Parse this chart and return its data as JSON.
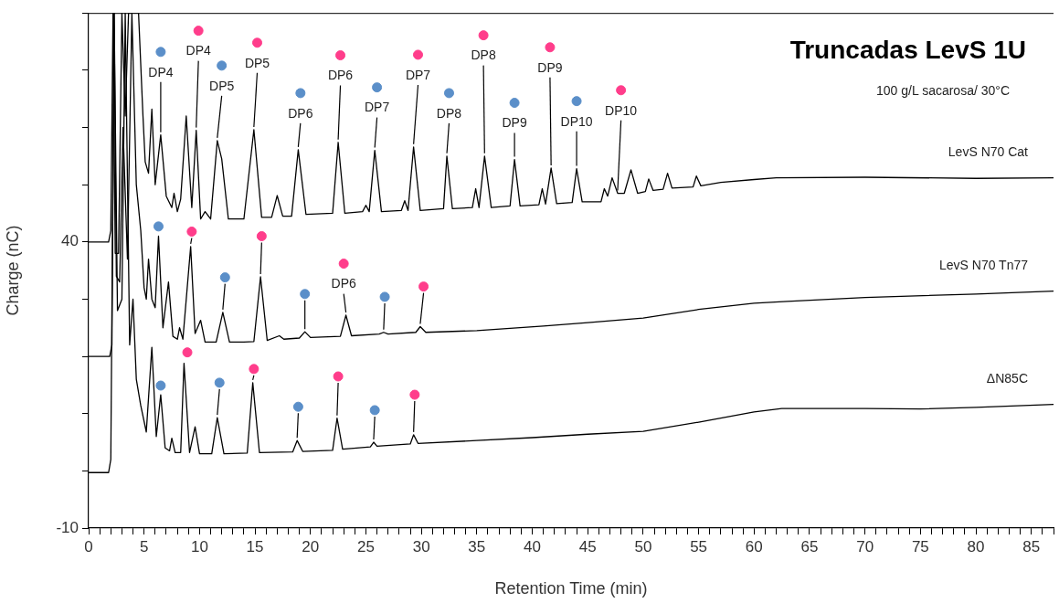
{
  "chart_data": {
    "type": "line",
    "title": "Truncadas LevS 1U",
    "subtitle": "100 g/L sacarosa/ 30°C",
    "xlabel": "Retention Time (min)",
    "ylabel": "Charge (nC)",
    "xlim": [
      0,
      87
    ],
    "ylim": [
      -10,
      80
    ],
    "grid": false,
    "legend": false,
    "marker": "none",
    "line_style": "solid",
    "xticks": [
      0,
      {
        "value": 1,
        "label": null
      },
      {
        "value": 2,
        "label": null
      },
      {
        "value": 3,
        "label": null
      },
      {
        "value": 4,
        "label": null
      },
      5,
      {
        "value": 6,
        "label": null
      },
      {
        "value": 7,
        "label": null
      },
      {
        "value": 8,
        "label": null
      },
      {
        "value": 9,
        "label": null
      },
      10,
      {
        "value": 11,
        "label": null
      },
      {
        "value": 12,
        "label": null
      },
      {
        "value": 13,
        "label": null
      },
      {
        "value": 14,
        "label": null
      },
      15,
      {
        "value": 16,
        "label": null
      },
      {
        "value": 17,
        "label": null
      },
      {
        "value": 18,
        "label": null
      },
      {
        "value": 19,
        "label": null
      },
      20,
      {
        "value": 21,
        "label": null
      },
      {
        "value": 22,
        "label": null
      },
      {
        "value": 23,
        "label": null
      },
      {
        "value": 24,
        "label": null
      },
      25,
      {
        "value": 26,
        "label": null
      },
      {
        "value": 27,
        "label": null
      },
      {
        "value": 28,
        "label": null
      },
      {
        "value": 29,
        "label": null
      },
      30,
      {
        "value": 31,
        "label": null
      },
      {
        "value": 32,
        "label": null
      },
      {
        "value": 33,
        "label": null
      },
      {
        "value": 34,
        "label": null
      },
      35,
      {
        "value": 36,
        "label": null
      },
      {
        "value": 37,
        "label": null
      },
      {
        "value": 38,
        "label": null
      },
      {
        "value": 39,
        "label": null
      },
      40,
      {
        "value": 41,
        "label": null
      },
      {
        "value": 42,
        "label": null
      },
      {
        "value": 43,
        "label": null
      },
      {
        "value": 44,
        "label": null
      },
      45,
      {
        "value": 46,
        "label": null
      },
      {
        "value": 47,
        "label": null
      },
      {
        "value": 48,
        "label": null
      },
      {
        "value": 49,
        "label": null
      },
      50,
      {
        "value": 51,
        "label": null
      },
      {
        "value": 52,
        "label": null
      },
      {
        "value": 53,
        "label": null
      },
      {
        "value": 54,
        "label": null
      },
      55,
      {
        "value": 56,
        "label": null
      },
      {
        "value": 57,
        "label": null
      },
      {
        "value": 58,
        "label": null
      },
      {
        "value": 59,
        "label": null
      },
      60,
      {
        "value": 61,
        "label": null
      },
      {
        "value": 62,
        "label": null
      },
      {
        "value": 63,
        "label": null
      },
      {
        "value": 64,
        "label": null
      },
      65,
      {
        "value": 66,
        "label": null
      },
      {
        "value": 67,
        "label": null
      },
      {
        "value": 68,
        "label": null
      },
      {
        "value": 69,
        "label": null
      },
      70,
      {
        "value": 71,
        "label": null
      },
      {
        "value": 72,
        "label": null
      },
      {
        "value": 73,
        "label": null
      },
      {
        "value": 74,
        "label": null
      },
      75,
      {
        "value": 76,
        "label": null
      },
      {
        "value": 77,
        "label": null
      },
      {
        "value": 78,
        "label": null
      },
      {
        "value": 79,
        "label": null
      },
      80,
      {
        "value": 81,
        "label": null
      },
      {
        "value": 82,
        "label": null
      },
      {
        "value": 83,
        "label": null
      },
      {
        "value": 84,
        "label": null
      },
      85,
      {
        "value": 86,
        "label": null
      },
      {
        "value": 87,
        "label": null
      }
    ],
    "yticks": [
      -10,
      {
        "value": 0,
        "label": null
      },
      {
        "value": 10,
        "label": null
      },
      {
        "value": 20,
        "label": null
      },
      {
        "value": 30,
        "label": null
      },
      40,
      {
        "value": 50,
        "label": null
      },
      {
        "value": 60,
        "label": null
      },
      {
        "value": 70,
        "label": null
      },
      {
        "value": 80,
        "label": null
      }
    ],
    "series": [
      {
        "name": "LevS N70 Cat",
        "color": "#000000",
        "x": [
          0,
          1.8,
          2.0,
          2.2,
          2.4,
          2.7,
          3.0,
          3.3,
          3.6,
          4.0,
          4.5,
          4.9,
          5.1,
          5.4,
          5.7,
          6.0,
          6.5,
          7.0,
          7.5,
          7.7,
          8.0,
          8.3,
          8.8,
          9.3,
          9.7,
          10.1,
          10.5,
          11.0,
          11.6,
          12.0,
          12.6,
          14.0,
          14.9,
          15.6,
          16.5,
          17.0,
          17.5,
          18.3,
          18.9,
          19.6,
          22.0,
          22.5,
          23.1,
          24.7,
          25.0,
          25.3,
          25.8,
          26.4,
          28.2,
          28.5,
          28.8,
          29.3,
          29.9,
          32.0,
          32.3,
          32.8,
          34.6,
          34.9,
          35.2,
          35.7,
          36.3,
          38.0,
          38.4,
          38.9,
          40.6,
          40.9,
          41.2,
          41.7,
          42.2,
          43.6,
          44.0,
          44.5,
          46.2,
          46.5,
          46.8,
          47.2,
          47.7,
          48.3,
          48.9,
          49.5,
          50.2,
          50.5,
          50.9,
          51.8,
          52.2,
          52.6,
          54.5,
          54.8,
          55.2,
          57,
          60,
          62,
          70,
          80,
          87
        ],
        "values": [
          40,
          40,
          42,
          80,
          38,
          38,
          80,
          62,
          80,
          80,
          80,
          62,
          54,
          52,
          63.2,
          50,
          58.7,
          48,
          46,
          48.5,
          45.3,
          47.5,
          62,
          46,
          59.5,
          44,
          45.3,
          44,
          57.7,
          54.5,
          44,
          44,
          59.6,
          44.3,
          44.3,
          48.1,
          44.5,
          44.5,
          56.1,
          44.8,
          45,
          57.4,
          45,
          45.3,
          46.4,
          45.3,
          56,
          45.3,
          45.5,
          47.2,
          45.5,
          56.6,
          45.5,
          45.8,
          55,
          45.8,
          46,
          49.3,
          46,
          55,
          46,
          46.3,
          54.4,
          46.3,
          46.5,
          49.3,
          46.6,
          52.9,
          46.7,
          46.9,
          52.8,
          47,
          47,
          49.3,
          48,
          51.2,
          48.5,
          48.5,
          52.6,
          48.5,
          48.8,
          51,
          49,
          49.2,
          52,
          49.4,
          49.6,
          51.5,
          49.8,
          50.4,
          50.9,
          51.2,
          51.3,
          51.1,
          51.2
        ]
      },
      {
        "name": "LevS N70 Tn77",
        "color": "#000000",
        "x": [
          0,
          1.9,
          2.1,
          2.3,
          2.5,
          2.8,
          3.1,
          3.5,
          3.9,
          4.3,
          4.7,
          5.0,
          5.2,
          5.4,
          5.7,
          6.0,
          6.3,
          6.7,
          7.2,
          7.6,
          8.0,
          8.2,
          8.5,
          9.2,
          9.6,
          10.1,
          10.5,
          11.5,
          12.1,
          12.7,
          14,
          14.9,
          15.5,
          16.1,
          17.2,
          17.6,
          19.0,
          19.5,
          20.0,
          22.7,
          23.2,
          23.7,
          26.2,
          26.6,
          27.0,
          29.5,
          29.9,
          30.4,
          35,
          41,
          45,
          50,
          55,
          60,
          63,
          70,
          80,
          87
        ],
        "values": [
          20,
          20,
          22,
          80,
          34,
          33,
          60,
          37,
          80,
          50,
          42,
          32,
          30,
          37,
          30,
          28.5,
          41,
          25,
          33,
          23.5,
          23,
          25,
          23,
          39.2,
          24,
          26.3,
          22.5,
          22.5,
          27.7,
          22.5,
          22.5,
          22.6,
          33.9,
          22.8,
          23.6,
          23,
          23.2,
          24.3,
          23.3,
          23.5,
          27.2,
          23.6,
          23.9,
          24.2,
          23.9,
          24.2,
          25.2,
          24.2,
          24.5,
          25.3,
          25.9,
          26.7,
          28.2,
          29.3,
          29.6,
          30.3,
          30.9,
          31.4
        ]
      },
      {
        "name": "ΔN85C",
        "color": "#000000",
        "x": [
          0,
          1.8,
          2.0,
          2.3,
          2.6,
          3.0,
          3.3,
          3.7,
          4.0,
          4.3,
          4.7,
          5.2,
          5.7,
          6.1,
          6.5,
          6.9,
          7.3,
          7.5,
          7.8,
          8.3,
          8.6,
          9.1,
          9.6,
          10.0,
          11.1,
          11.6,
          12.2,
          14.3,
          14.8,
          15.4,
          18.4,
          18.8,
          19.3,
          22.0,
          22.4,
          22.9,
          25.4,
          25.7,
          26.0,
          29.0,
          29.3,
          29.7,
          35,
          40,
          45,
          50,
          55,
          60,
          62.5,
          70,
          75,
          80,
          87
        ],
        "values": [
          -0.3,
          -0.3,
          2,
          80,
          28,
          30,
          80,
          22,
          30,
          16,
          11.4,
          6.8,
          21.6,
          6,
          13.3,
          4,
          3.5,
          5.7,
          3.2,
          3.2,
          18.8,
          3.2,
          7.7,
          3,
          3,
          9.3,
          3,
          3.1,
          15.4,
          3.2,
          3.3,
          5.3,
          3.4,
          3.6,
          9.2,
          3.8,
          4.2,
          5,
          4.3,
          4.7,
          6.3,
          4.8,
          5.3,
          5.8,
          6.4,
          6.9,
          8.5,
          10.3,
          10.9,
          10.9,
          10.8,
          11.1,
          11.6
        ]
      },
      {
        "type": "scatter",
        "marker": "circle",
        "color": "#5b8fc9",
        "x": [
          6.5,
          12.0,
          19.1,
          26.0,
          32.5,
          38.4,
          44.0,
          6.3,
          12.3,
          19.5,
          26.7,
          6.5,
          11.8,
          18.9,
          25.8
        ],
        "values": [
          73.2,
          70.8,
          66.0,
          67.0,
          66.0,
          64.3,
          64.6,
          42.7,
          33.8,
          30.9,
          30.4,
          14.9,
          15.4,
          11.2,
          10.6
        ],
        "value_labels": [
          "DP4",
          "DP5",
          "DP6",
          "DP7",
          "DP8",
          "DP9",
          "DP10",
          null,
          null,
          null,
          null,
          null,
          null,
          null,
          null
        ]
      },
      {
        "type": "scatter",
        "marker": "circle",
        "color": "#ff3d8b",
        "x": [
          9.9,
          15.2,
          22.7,
          29.7,
          35.6,
          41.6,
          48.0,
          9.3,
          15.6,
          23.0,
          30.2,
          8.9,
          14.9,
          22.5,
          29.4
        ],
        "values": [
          76.9,
          74.8,
          72.6,
          72.7,
          76.1,
          74.0,
          66.5,
          41.8,
          41.0,
          36.2,
          32.2,
          20.7,
          17.8,
          16.5,
          13.3
        ],
        "value_labels": [
          "DP4",
          "DP5",
          "DP6",
          "DP7",
          "DP8",
          "DP9",
          "DP10",
          null,
          null,
          "DP6",
          null,
          null,
          null,
          null,
          null
        ]
      }
    ]
  }
}
